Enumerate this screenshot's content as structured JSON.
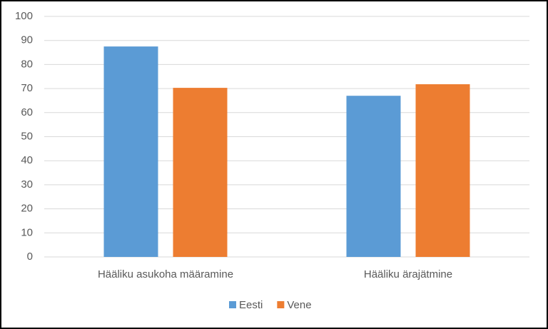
{
  "chart_data": {
    "type": "bar",
    "categories": [
      "Hääliku asukoha määramine",
      "Hääliku ärajätmine"
    ],
    "series": [
      {
        "name": "Eesti",
        "color": "#5b9bd5",
        "values": [
          87.5,
          67
        ]
      },
      {
        "name": "Vene",
        "color": "#ed7d31",
        "values": [
          70.3,
          71.8
        ]
      }
    ],
    "ylim": [
      0,
      100
    ],
    "yticks": [
      0,
      10,
      20,
      30,
      40,
      50,
      60,
      70,
      80,
      90,
      100
    ],
    "grid": true,
    "legend": "bottom"
  }
}
